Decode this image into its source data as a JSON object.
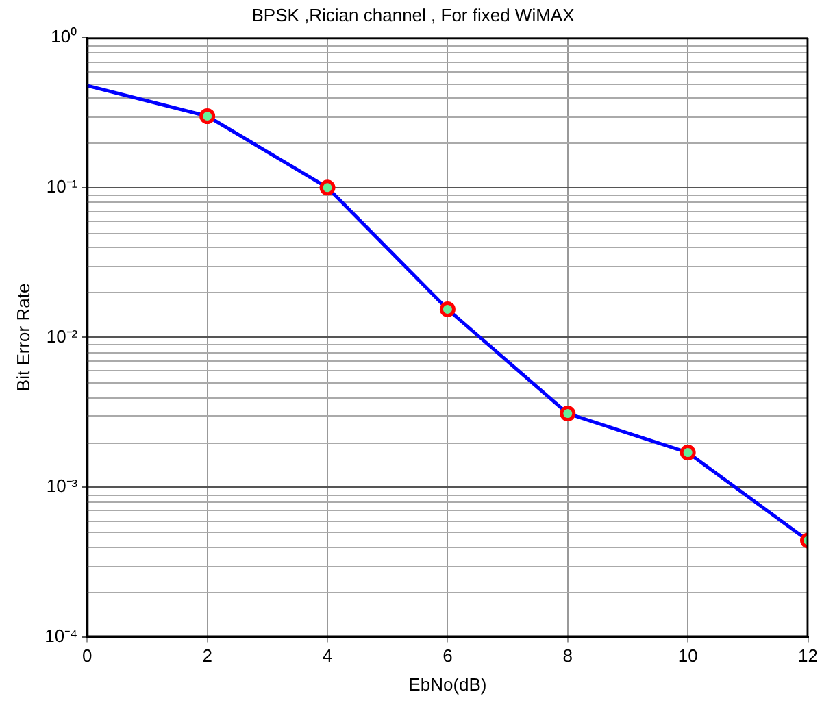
{
  "chart_data": {
    "type": "line",
    "title": "BPSK ,Rician channel , For fixed WiMAX",
    "xlabel": "EbNo(dB)",
    "ylabel": "Bit Error Rate",
    "log": "y",
    "grid": true,
    "legend": false,
    "xlim": [
      0,
      12
    ],
    "xticks": [
      0,
      2,
      4,
      6,
      8,
      10,
      12
    ],
    "ylim": [
      0.0001,
      1
    ],
    "yticks": [
      {
        "value": 0.0001,
        "label": "10⁻⁴"
      },
      {
        "value": 0.001,
        "label": "10⁻³"
      },
      {
        "value": 0.01,
        "label": "10⁻²"
      },
      {
        "value": 0.1,
        "label": "10⁻¹"
      },
      {
        "value": 1,
        "label": "10⁰"
      }
    ],
    "series": [
      {
        "type": "line",
        "color": "#0000ff",
        "marker": "none",
        "line_style": "solid",
        "x": [
          0,
          2,
          4,
          6,
          8,
          10,
          12
        ],
        "values": [
          0.48,
          0.3,
          0.1,
          0.0154,
          0.0031,
          0.0017,
          0.00044
        ]
      },
      {
        "type": "scatter",
        "color": "#ff0000",
        "marker": "circle",
        "x": [
          2,
          4,
          6,
          8,
          10,
          12
        ],
        "values": [
          0.3,
          0.1,
          0.0154,
          0.0031,
          0.0017,
          0.00044
        ]
      }
    ]
  }
}
